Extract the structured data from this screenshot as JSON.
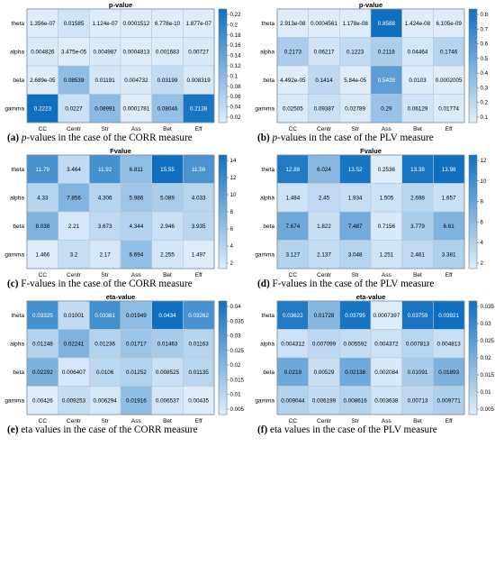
{
  "figure": {
    "panels": [
      {
        "title": "p-value",
        "caption_label": "(a)",
        "caption_lead_italic": "p",
        "caption_text": "-values in the case of the CORR measure",
        "colorbar_ticks": [
          "0.22",
          "0.2",
          "0.18",
          "0.16",
          "0.14",
          "0.12",
          "0.1",
          "0.08",
          "0.06",
          "0.04",
          "0.02"
        ]
      },
      {
        "title": "p-value",
        "caption_label": "(b)",
        "caption_lead_italic": "p",
        "caption_text": "-values in the case of the PLV measure",
        "colorbar_ticks": [
          "0.8",
          "0.7",
          "0.6",
          "0.5",
          "0.4",
          "0.3",
          "0.2",
          "0.1"
        ]
      },
      {
        "title": "Fvalue",
        "caption_label": "(c)",
        "caption_lead_italic": "",
        "caption_text": "F-values in the case of the CORR measure",
        "colorbar_ticks": [
          "14",
          "12",
          "10",
          "8",
          "6",
          "4",
          "2"
        ]
      },
      {
        "title": "Fvalue",
        "caption_label": "(d)",
        "caption_lead_italic": "",
        "caption_text": "F-values in the case of the PLV measure",
        "colorbar_ticks": [
          "12",
          "10",
          "8",
          "6",
          "4",
          "2"
        ]
      },
      {
        "title": "eta-value",
        "caption_label": "(e)",
        "caption_lead_italic": "",
        "caption_text": "eta values in the case of the CORR measure",
        "colorbar_ticks": [
          "0.04",
          "0.035",
          "0.03",
          "0.025",
          "0.02",
          "0.015",
          "0.01",
          "0.005"
        ]
      },
      {
        "title": "eta-value",
        "caption_label": "(f)",
        "caption_lead_italic": "",
        "caption_text": "eta values in the case of the PLV measure",
        "colorbar_ticks": [
          "0.035",
          "0.03",
          "0.025",
          "0.02",
          "0.015",
          "0.01",
          "0.005"
        ]
      }
    ]
  },
  "chart_data": [
    {
      "type": "heatmap",
      "title": "p-value",
      "x_categories": [
        "CC",
        "Centr",
        "Str",
        "Ass",
        "Bet",
        "Eff"
      ],
      "y_categories": [
        "theta",
        "alpha",
        "beta",
        "gamma"
      ],
      "cell_labels": [
        [
          "1.356e-07",
          "0.01585",
          "1.124e-07",
          "0.0001512",
          "6.778e-10",
          "1.877e-07"
        ],
        [
          "0.004826",
          "3.475e-05",
          "0.004987",
          "0.0004813",
          "0.001683",
          "0.00727"
        ],
        [
          "2.689e-05",
          "0.08539",
          "0.01191",
          "0.004732",
          "0.03199",
          "0.008319"
        ],
        [
          "0.2223",
          "0.0227",
          "0.08991",
          "0.0001781",
          "0.08046",
          "0.2138"
        ]
      ],
      "values": [
        [
          1.356e-07,
          0.01585,
          1.124e-07,
          0.0001512,
          6.778e-10,
          1.877e-07
        ],
        [
          0.004826,
          3.475e-05,
          0.004987,
          0.0004813,
          0.001683,
          0.00727
        ],
        [
          2.689e-05,
          0.08539,
          0.01191,
          0.004732,
          0.03199,
          0.008319
        ],
        [
          0.2223,
          0.0227,
          0.08991,
          0.0001781,
          0.08046,
          0.2138
        ]
      ],
      "color_range": [
        0,
        0.2223
      ],
      "colorbar": "right"
    },
    {
      "type": "heatmap",
      "title": "p-value",
      "x_categories": [
        "CC",
        "Centr",
        "Str",
        "Ass",
        "Bet",
        "Eff"
      ],
      "y_categories": [
        "theta",
        "alpha",
        "beta",
        "gamma"
      ],
      "cell_labels": [
        [
          "2.913e-08",
          "0.0004561",
          "1.178e-08",
          "0.8588",
          "1.424e-08",
          "6.105e-09"
        ],
        [
          "0.2173",
          "0.06217",
          "0.1223",
          "0.2118",
          "0.04464",
          "0.1746"
        ],
        [
          "4.492e-05",
          "0.1414",
          "5.84e-05",
          "0.5428",
          "0.0103",
          "0.0002005"
        ],
        [
          "0.02505",
          "0.09387",
          "0.02789",
          "0.29",
          "0.06129",
          "0.01774"
        ]
      ],
      "values": [
        [
          2.913e-08,
          0.0004561,
          1.178e-08,
          0.8588,
          1.424e-08,
          6.105e-09
        ],
        [
          0.2173,
          0.06217,
          0.1223,
          0.2118,
          0.04464,
          0.1746
        ],
        [
          4.492e-05,
          0.1414,
          5.84e-05,
          0.5428,
          0.0103,
          0.0002005
        ],
        [
          0.02505,
          0.09387,
          0.02789,
          0.29,
          0.06129,
          0.01774
        ]
      ],
      "color_range": [
        0,
        0.8588
      ],
      "colorbar": "right"
    },
    {
      "type": "heatmap",
      "title": "Fvalue",
      "x_categories": [
        "CC",
        "Centr",
        "Str",
        "Ass",
        "Bet",
        "Eff"
      ],
      "y_categories": [
        "theta",
        "alpha",
        "beta",
        "gamma"
      ],
      "cell_labels": [
        [
          "11.79",
          "3.464",
          "11.92",
          "6.811",
          "15.55",
          "11.56"
        ],
        [
          "4.33",
          "7.856",
          "4.306",
          "5.986",
          "5.089",
          "4.033"
        ],
        [
          "8.038",
          "2.21",
          "3.673",
          "4.344",
          "2.946",
          "3.935"
        ],
        [
          "1.466",
          "3.2",
          "2.17",
          "6.694",
          "2.255",
          "1.497"
        ]
      ],
      "values": [
        [
          11.79,
          3.464,
          11.92,
          6.811,
          15.55,
          11.56
        ],
        [
          4.33,
          7.856,
          4.306,
          5.986,
          5.089,
          4.033
        ],
        [
          8.038,
          2.21,
          3.673,
          4.344,
          2.946,
          3.935
        ],
        [
          1.466,
          3.2,
          2.17,
          6.694,
          2.255,
          1.497
        ]
      ],
      "color_range": [
        1.466,
        15.55
      ],
      "colorbar": "right"
    },
    {
      "type": "heatmap",
      "title": "Fvalue",
      "x_categories": [
        "CC",
        "Centr",
        "Str",
        "Ass",
        "Bet",
        "Eff"
      ],
      "y_categories": [
        "theta",
        "alpha",
        "beta",
        "gamma"
      ],
      "cell_labels": [
        [
          "12.88",
          "6.024",
          "13.52",
          "0.2536",
          "13.38",
          "13.98"
        ],
        [
          "1.484",
          "2.45",
          "1.934",
          "1.505",
          "2.698",
          "1.657"
        ],
        [
          "7.674",
          "1.822",
          "7.487",
          "0.7156",
          "3.779",
          "6.61"
        ],
        [
          "3.127",
          "2.137",
          "3.048",
          "1.251",
          "2.461",
          "3.381"
        ]
      ],
      "values": [
        [
          12.88,
          6.024,
          13.52,
          0.2536,
          13.38,
          13.98
        ],
        [
          1.484,
          2.45,
          1.934,
          1.505,
          2.698,
          1.657
        ],
        [
          7.674,
          1.822,
          7.487,
          0.7156,
          3.779,
          6.61
        ],
        [
          3.127,
          2.137,
          3.048,
          1.251,
          2.461,
          3.381
        ]
      ],
      "color_range": [
        0.2536,
        13.98
      ],
      "colorbar": "right"
    },
    {
      "type": "heatmap",
      "title": "eta-value",
      "x_categories": [
        "CC",
        "Centr",
        "Str",
        "Ass",
        "Bet",
        "Eff"
      ],
      "y_categories": [
        "theta",
        "alpha",
        "beta",
        "gamma"
      ],
      "cell_labels": [
        [
          "0.03325",
          "0.01001",
          "0.03361",
          "0.01949",
          "0.0434",
          "0.03262"
        ],
        [
          "0.01248",
          "0.02241",
          "0.01236",
          "0.01717",
          "0.01463",
          "0.01163"
        ],
        [
          "0.02292",
          "0.006407",
          "0.0106",
          "0.01252",
          "0.008525",
          "0.01135"
        ],
        [
          "0.00426",
          "0.009253",
          "0.006294",
          "0.01916",
          "0.006537",
          "0.00435"
        ]
      ],
      "values": [
        [
          0.03325,
          0.01001,
          0.03361,
          0.01949,
          0.0434,
          0.03262
        ],
        [
          0.01248,
          0.02241,
          0.01236,
          0.01717,
          0.01463,
          0.01163
        ],
        [
          0.02292,
          0.006407,
          0.0106,
          0.01252,
          0.008525,
          0.01135
        ],
        [
          0.00426,
          0.009253,
          0.006294,
          0.01916,
          0.006537,
          0.00435
        ]
      ],
      "color_range": [
        0.00426,
        0.0434
      ],
      "colorbar": "right"
    },
    {
      "type": "heatmap",
      "title": "eta-value",
      "x_categories": [
        "CC",
        "Centr",
        "Str",
        "Ass",
        "Bet",
        "Eff"
      ],
      "y_categories": [
        "theta",
        "alpha",
        "beta",
        "gamma"
      ],
      "cell_labels": [
        [
          "0.03622",
          "0.01728",
          "0.03795",
          "0.0007397",
          "0.03759",
          "0.03921"
        ],
        [
          "0.004312",
          "0.007099",
          "0.005592",
          "0.004372",
          "0.007813",
          "0.004813"
        ],
        [
          "0.0219",
          "0.00529",
          "0.02138",
          "0.002084",
          "0.01091",
          "0.01893"
        ],
        [
          "0.009044",
          "0.006199",
          "0.008616",
          "0.003638",
          "0.00713",
          "0.009771"
        ]
      ],
      "values": [
        [
          0.03622,
          0.01728,
          0.03795,
          0.0007397,
          0.03759,
          0.03921
        ],
        [
          0.004312,
          0.007099,
          0.005592,
          0.004372,
          0.007813,
          0.004813
        ],
        [
          0.0219,
          0.00529,
          0.02138,
          0.002084,
          0.01091,
          0.01893
        ],
        [
          0.009044,
          0.006199,
          0.008616,
          0.003638,
          0.00713,
          0.009771
        ]
      ],
      "color_range": [
        0.0007397,
        0.03921
      ],
      "colorbar": "right"
    }
  ]
}
